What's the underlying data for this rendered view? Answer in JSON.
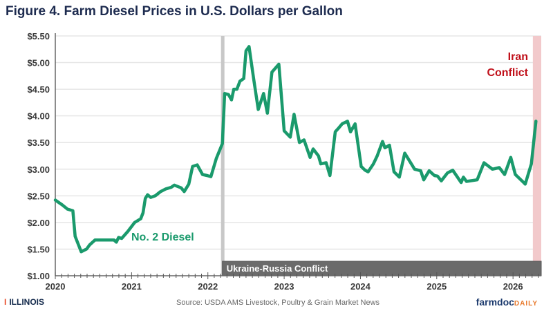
{
  "chart_data": {
    "type": "line",
    "title": "Figure 4. Farm Diesel Prices in U.S. Dollars per Gallon",
    "xlabel": "",
    "ylabel": "",
    "xlim": [
      2020,
      2026.37
    ],
    "ylim": [
      1.0,
      5.5
    ],
    "x_ticks": [
      "2020",
      "2021",
      "2022",
      "2023",
      "2024",
      "2025",
      "2026"
    ],
    "y_ticks": [
      "$1.00",
      "$1.50",
      "$2.00",
      "$2.50",
      "$3.00",
      "$3.50",
      "$4.00",
      "$4.50",
      "$5.00",
      "$5.50"
    ],
    "grid": "horizontal",
    "series": [
      {
        "name": "No. 2 Diesel",
        "color": "#1a9a6c",
        "x": [
          2020.0,
          2020.09,
          2020.16,
          2020.23,
          2020.26,
          2020.34,
          2020.41,
          2020.45,
          2020.52,
          2020.77,
          2020.8,
          2020.83,
          2020.87,
          2020.95,
          2021.04,
          2021.12,
          2021.15,
          2021.18,
          2021.21,
          2021.25,
          2021.31,
          2021.38,
          2021.45,
          2021.52,
          2021.56,
          2021.65,
          2021.69,
          2021.75,
          2021.8,
          2021.86,
          2021.93,
          2021.99,
          2022.04,
          2022.11,
          2022.19,
          2022.22,
          2022.27,
          2022.31,
          2022.34,
          2022.38,
          2022.42,
          2022.47,
          2022.5,
          2022.54,
          2022.6,
          2022.66,
          2022.73,
          2022.78,
          2022.84,
          2022.93,
          2023.0,
          2023.08,
          2023.13,
          2023.2,
          2023.26,
          2023.34,
          2023.38,
          2023.45,
          2023.48,
          2023.55,
          2023.6,
          2023.67,
          2023.72,
          2023.76,
          2023.83,
          2023.87,
          2023.93,
          2024.01,
          2024.06,
          2024.1,
          2024.17,
          2024.22,
          2024.29,
          2024.32,
          2024.38,
          2024.44,
          2024.51,
          2024.58,
          2024.71,
          2024.79,
          2024.83,
          2024.9,
          2024.97,
          2025.01,
          2025.06,
          2025.14,
          2025.21,
          2025.32,
          2025.35,
          2025.39,
          2025.53,
          2025.62,
          2025.73,
          2025.82,
          2025.89,
          2025.97,
          2026.03,
          2026.14,
          2026.16,
          2026.24,
          2026.3
        ],
        "y": [
          2.42,
          2.33,
          2.25,
          2.22,
          1.74,
          1.45,
          1.5,
          1.58,
          1.67,
          1.67,
          1.63,
          1.72,
          1.7,
          1.83,
          2.0,
          2.07,
          2.18,
          2.45,
          2.52,
          2.47,
          2.5,
          2.58,
          2.63,
          2.66,
          2.7,
          2.65,
          2.58,
          2.72,
          3.05,
          3.08,
          2.9,
          2.88,
          2.86,
          3.2,
          3.48,
          4.42,
          4.4,
          4.3,
          4.5,
          4.5,
          4.65,
          4.7,
          5.22,
          5.3,
          4.7,
          4.12,
          4.42,
          4.05,
          4.82,
          4.97,
          3.72,
          3.6,
          4.03,
          3.5,
          3.55,
          3.22,
          3.38,
          3.25,
          3.1,
          3.12,
          2.88,
          3.7,
          3.78,
          3.85,
          3.9,
          3.7,
          3.85,
          3.05,
          2.98,
          2.95,
          3.1,
          3.25,
          3.52,
          3.4,
          3.45,
          2.95,
          2.85,
          3.3,
          3.0,
          2.97,
          2.8,
          2.97,
          2.88,
          2.87,
          2.78,
          2.93,
          2.98,
          2.75,
          2.85,
          2.77,
          2.8,
          3.12,
          3.0,
          3.03,
          2.9,
          3.22,
          2.9,
          2.75,
          2.72,
          3.1,
          3.9
        ]
      }
    ],
    "annotations": [
      {
        "text": "No. 2 Diesel",
        "color": "#1a9a6c"
      },
      {
        "text": "Ukraine-Russia Conflict",
        "start": 2022.19,
        "end": 2026.37,
        "color": "#6b6b6b"
      },
      {
        "text_line1": "Iran",
        "text_line2": "Conflict",
        "start": 2026.26,
        "end": 2026.37,
        "color": "#c0101a",
        "band_color": "#f2c9cb"
      }
    ],
    "legend": "none"
  },
  "footer": {
    "logo": "ILLINOIS",
    "logo_mark": "I",
    "source": "Source: USDA AMS Livestock, Poultry & Grain Market News",
    "brand_main": "farmdoc",
    "brand_sub": "DAILY"
  }
}
